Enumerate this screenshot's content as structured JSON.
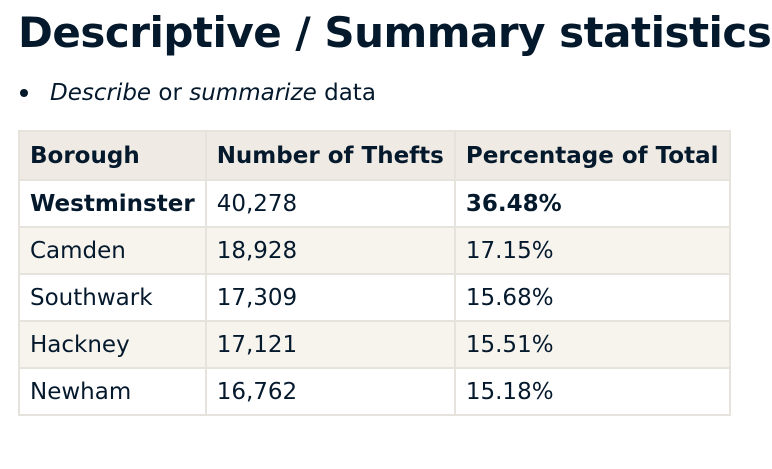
{
  "header": {
    "title": "Descriptive / Summary statistics"
  },
  "bullet": {
    "parts": [
      "Describe",
      "or",
      "summarize",
      "data"
    ]
  },
  "table": {
    "columns": [
      "Borough",
      "Number of Thefts",
      "Percentage of Total"
    ],
    "rows": [
      [
        "Westminster",
        "40,278",
        "36.48%"
      ],
      [
        "Camden",
        "18,928",
        "17.15%"
      ],
      [
        "Southwark",
        "17,309",
        "15.68%"
      ],
      [
        "Hackney",
        "17,121",
        "15.51%"
      ],
      [
        "Newham",
        "16,762",
        "15.18%"
      ]
    ]
  }
}
